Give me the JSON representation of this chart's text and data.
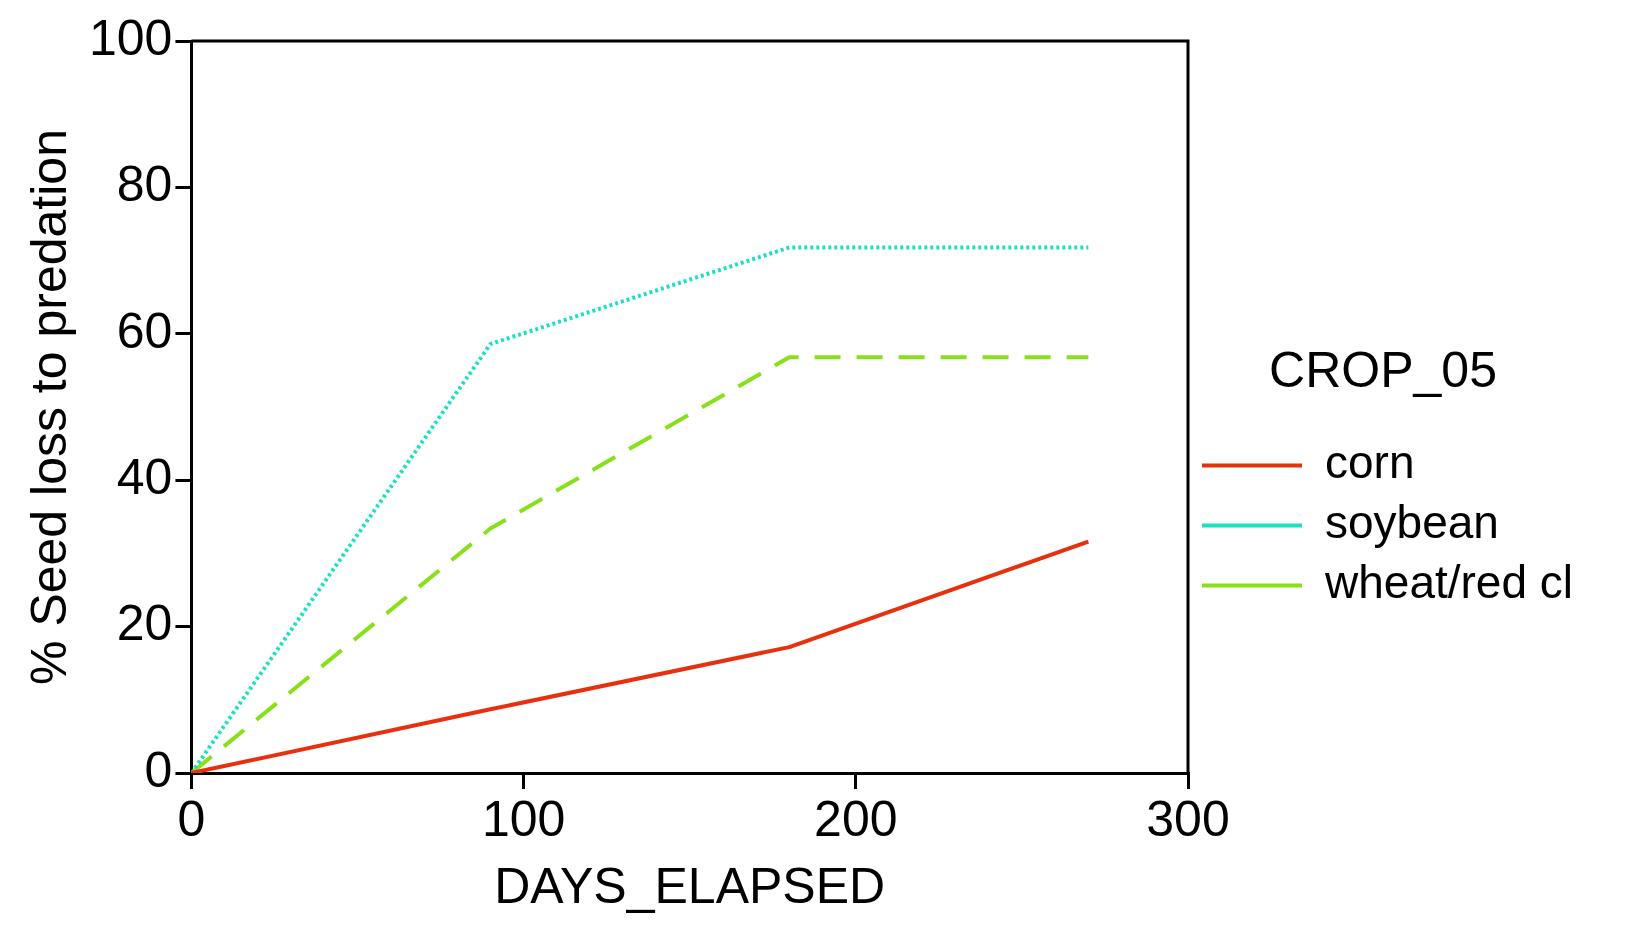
{
  "chart_data": {
    "type": "line",
    "xlabel": "DAYS_ELAPSED",
    "ylabel": "% Seed loss to predation",
    "legend_title": "CROP_05",
    "x": [
      0,
      90,
      180,
      270
    ],
    "series": [
      {
        "name": "corn",
        "color": "#e8300e",
        "values": [
          0,
          8.7,
          17.2,
          31.6
        ],
        "line_style": "solid"
      },
      {
        "name": "soybean",
        "color": "#1de0c0",
        "values": [
          0,
          58.6,
          71.8,
          71.8
        ],
        "line_style": "dotted"
      },
      {
        "name": "wheat/red cl",
        "color": "#88e01a",
        "values": [
          0,
          33.4,
          56.8,
          56.8
        ],
        "line_style": "dashed"
      }
    ],
    "xlim": [
      0,
      300
    ],
    "ylim": [
      0,
      100
    ],
    "xticks": [
      0,
      100,
      200,
      300
    ],
    "yticks": [
      0,
      20,
      40,
      60,
      80,
      100
    ],
    "grid": false,
    "legend": "right",
    "marker": "none"
  }
}
